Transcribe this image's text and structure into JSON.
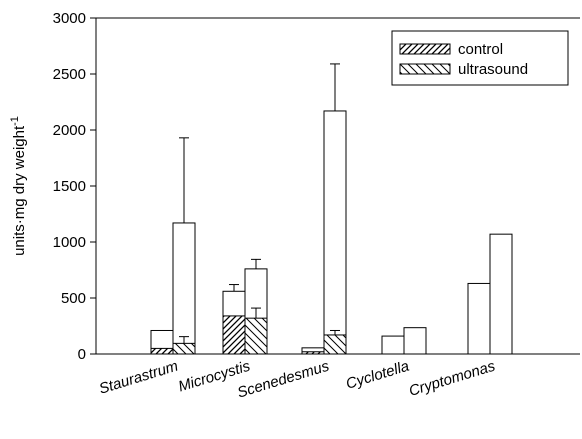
{
  "chart_data": {
    "type": "bar",
    "xlabel": "",
    "ylabel": {
      "main": "units·mg dry weight",
      "superscript": "-1"
    },
    "ylim": [
      0,
      3000
    ],
    "yticks": [
      0,
      500,
      1000,
      1500,
      2000,
      2500,
      3000
    ],
    "categories": [
      "Staurastrum",
      "Microcystis",
      "Scenedesmus",
      "Cyclotella",
      "Cryptomonas"
    ],
    "series": [
      {
        "name": "control",
        "pattern": "diag-forward",
        "totals": [
          210,
          560,
          55,
          160,
          630
        ],
        "totals_error": [
          0,
          60,
          0,
          0,
          0
        ],
        "hatched_part": [
          50,
          340,
          20,
          0,
          0
        ],
        "hatched_error": [
          0,
          0,
          0,
          0,
          0
        ]
      },
      {
        "name": "ultrasound",
        "pattern": "diag-backward",
        "totals": [
          1170,
          760,
          2170,
          235,
          1070
        ],
        "totals_error": [
          760,
          85,
          420,
          0,
          0
        ],
        "hatched_part": [
          95,
          320,
          170,
          0,
          0
        ],
        "hatched_error": [
          60,
          90,
          40,
          0,
          0
        ]
      }
    ],
    "legend": {
      "position": "top-right"
    },
    "grid": false,
    "colors": {
      "bar_fill": "#ffffff",
      "stroke": "#000000"
    }
  }
}
